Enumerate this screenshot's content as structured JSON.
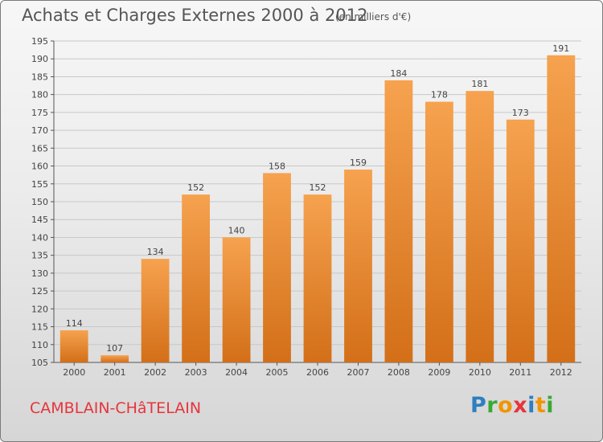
{
  "title": "Achats et Charges Externes 2000 à 2012",
  "subtitle": "(en milliers d'€)",
  "commune": "CAMBLAIN-CHâTELAIN",
  "brand": {
    "letters": [
      "P",
      "r",
      "o",
      "x",
      "i",
      "t",
      "i"
    ],
    "colors": [
      "#2e7fc0",
      "#39a935",
      "#f29400",
      "#e8343a",
      "#2e7fc0",
      "#f29400",
      "#39a935"
    ]
  },
  "colors": {
    "bar": "#e88a2e",
    "commune": "#e8343a"
  },
  "chart_data": {
    "type": "bar",
    "title": "Achats et Charges Externes 2000 à 2012",
    "subtitle": "(en milliers d'€)",
    "categories": [
      "2000",
      "2001",
      "2002",
      "2003",
      "2004",
      "2005",
      "2006",
      "2007",
      "2008",
      "2009",
      "2010",
      "2011",
      "2012"
    ],
    "values": [
      114,
      107,
      134,
      152,
      140,
      158,
      152,
      159,
      184,
      178,
      181,
      173,
      191
    ],
    "ylim": [
      105,
      195
    ],
    "yticks": [
      105,
      110,
      115,
      120,
      125,
      130,
      135,
      140,
      145,
      150,
      155,
      160,
      165,
      170,
      175,
      180,
      185,
      190,
      195
    ],
    "grid": true,
    "legend": "none"
  }
}
